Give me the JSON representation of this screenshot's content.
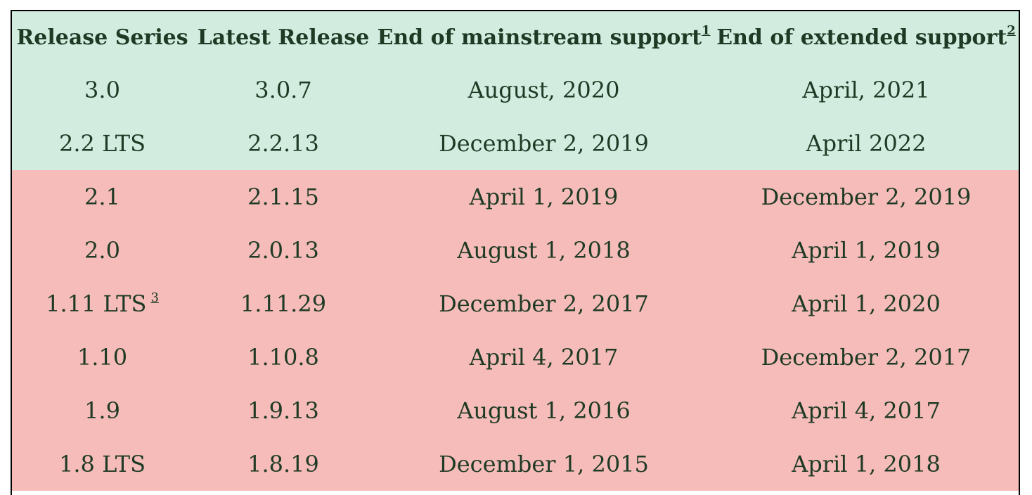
{
  "table": {
    "headers": {
      "release_series": "Release Series",
      "latest_release": "Latest Release",
      "end_mainstream": "End of mainstream support",
      "end_mainstream_note": "1",
      "end_extended": "End of extended support",
      "end_extended_note": "2"
    },
    "rows": [
      {
        "series": "3.0",
        "series_note": "",
        "latest": "3.0.7",
        "mainstream": "August, 2020",
        "extended": "April, 2021",
        "status": "supported"
      },
      {
        "series": "2.2 LTS",
        "series_note": "",
        "latest": "2.2.13",
        "mainstream": "December 2, 2019",
        "extended": "April 2022",
        "status": "supported"
      },
      {
        "series": "2.1",
        "series_note": "",
        "latest": "2.1.15",
        "mainstream": "April 1, 2019",
        "extended": "December 2, 2019",
        "status": "unsupported"
      },
      {
        "series": "2.0",
        "series_note": "",
        "latest": "2.0.13",
        "mainstream": "August 1, 2018",
        "extended": "April 1, 2019",
        "status": "unsupported"
      },
      {
        "series": "1.11 LTS",
        "series_note": "3",
        "latest": "1.11.29",
        "mainstream": "December 2, 2017",
        "extended": "April 1, 2020",
        "status": "unsupported"
      },
      {
        "series": "1.10",
        "series_note": "",
        "latest": "1.10.8",
        "mainstream": "April 4, 2017",
        "extended": "December 2, 2017",
        "status": "unsupported"
      },
      {
        "series": "1.9",
        "series_note": "",
        "latest": "1.9.13",
        "mainstream": "August 1, 2016",
        "extended": "April 4, 2017",
        "status": "unsupported"
      },
      {
        "series": "1.8 LTS",
        "series_note": "",
        "latest": "1.8.19",
        "mainstream": "December 1, 2015",
        "extended": "April 1, 2018",
        "status": "unsupported"
      }
    ]
  },
  "colors": {
    "supported_bg": "#d2ede0",
    "unsupported_bg": "#f5bcba",
    "text": "#1f3a24"
  }
}
